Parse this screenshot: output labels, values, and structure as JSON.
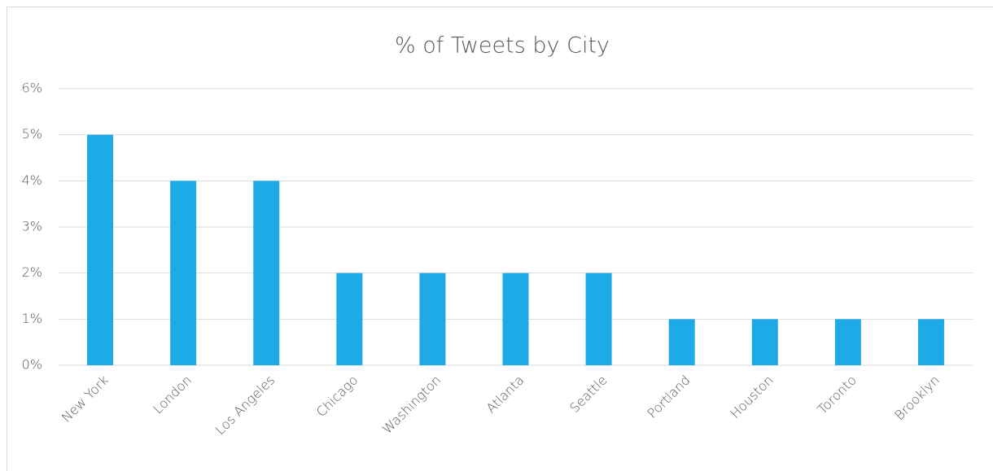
{
  "chart_data": {
    "type": "bar",
    "title": "% of Tweets by City",
    "categories": [
      "New York",
      "London",
      "Los Angeles",
      "Chicago",
      "Washington",
      "Atlanta",
      "Seattle",
      "Portland",
      "Houston",
      "Toronto",
      "Brooklyn"
    ],
    "values": [
      5,
      4,
      4,
      2,
      2,
      2,
      2,
      1,
      1,
      1,
      1
    ],
    "color": "#1eaae6",
    "ylim": [
      0,
      6
    ],
    "yticks": [
      {
        "value": 0,
        "label": "0%"
      },
      {
        "value": 1,
        "label": "1%"
      },
      {
        "value": 2,
        "label": "2%"
      },
      {
        "value": 3,
        "label": "3%"
      },
      {
        "value": 4,
        "label": "4%"
      },
      {
        "value": 5,
        "label": "5%"
      },
      {
        "value": 6,
        "label": "6%"
      }
    ],
    "grid": true
  }
}
